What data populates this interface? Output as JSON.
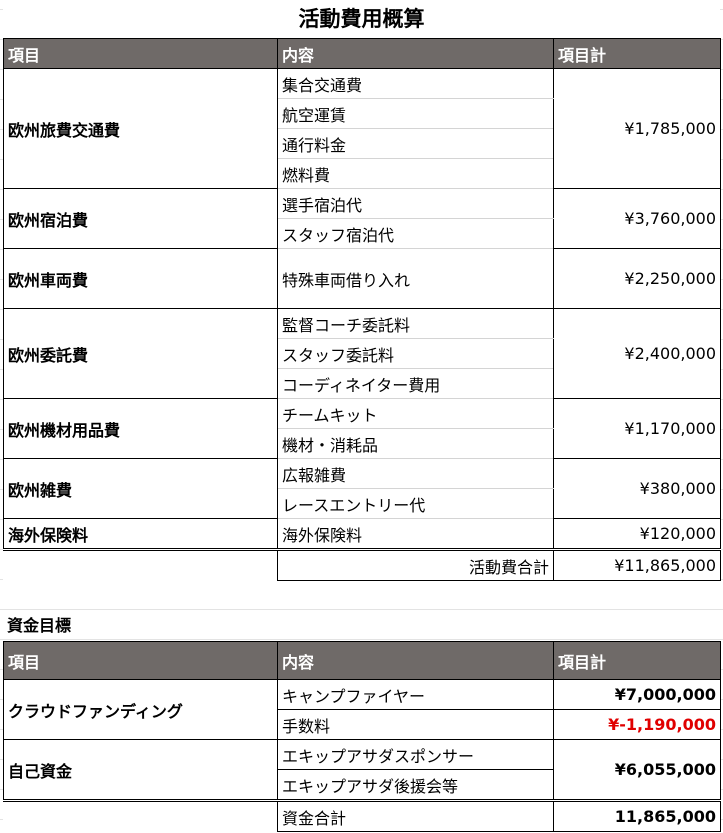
{
  "title": "活動費用概算",
  "headers": {
    "item": "項目",
    "content": "内容",
    "total": "項目計"
  },
  "expenses": {
    "travel": {
      "label": "欧州旅費交通費",
      "items": [
        "集合交通費",
        "航空運賃",
        "通行料金",
        "燃料費"
      ],
      "total": "¥1,785,000"
    },
    "lodging": {
      "label": "欧州宿泊費",
      "items": [
        "選手宿泊代",
        "スタッフ宿泊代"
      ],
      "total": "¥3,760,000"
    },
    "vehicle": {
      "label": "欧州車両費",
      "items": [
        "特殊車両借り入れ"
      ],
      "total": "¥2,250,000"
    },
    "commission": {
      "label": "欧州委託費",
      "items": [
        "監督コーチ委託料",
        "スタッフ委託料",
        "コーディネイター費用"
      ],
      "total": "¥2,400,000"
    },
    "equipment": {
      "label": "欧州機材用品費",
      "items": [
        "チームキット",
        "機材・消耗品"
      ],
      "total": "¥1,170,000"
    },
    "misc": {
      "label": "欧州雑費",
      "items": [
        "広報雑費",
        "レースエントリー代"
      ],
      "total": "¥380,000"
    },
    "insurance": {
      "label": "海外保険料",
      "items": [
        "海外保険料"
      ],
      "total": "¥120,000"
    },
    "sum_label": "活動費合計",
    "sum_value": "¥11,865,000"
  },
  "funding": {
    "section_title": "資金目標",
    "crowdfunding": {
      "label": "クラウドファンディング",
      "items": [
        "キャンプファイヤー",
        "手数料"
      ],
      "values": [
        "¥7,000,000",
        "¥-1,190,000"
      ]
    },
    "own": {
      "label": "自己資金",
      "items": [
        "エキップアサダスポンサー",
        "エキップアサダ後援会等"
      ],
      "total": "¥6,055,000"
    },
    "sum_label": "資金合計",
    "sum_value": "11,865,000"
  },
  "colors": {
    "header_bg": "#6f6a68",
    "negative": "#e00000"
  }
}
